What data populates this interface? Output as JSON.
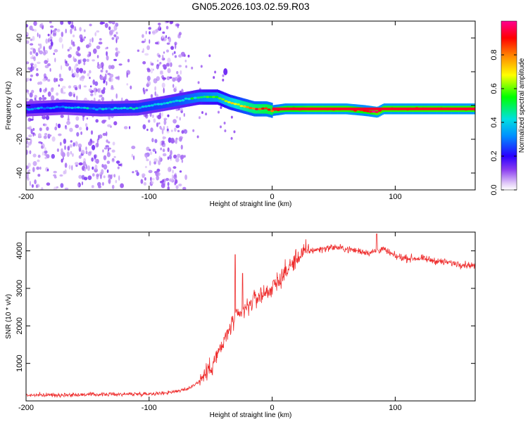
{
  "title": "GN05.2026.103.02.59.R03",
  "chart_data": [
    {
      "type": "heatmap",
      "name": "spectrogram",
      "xlabel": "Height of straight line (km)",
      "ylabel": "Frequency (Hz)",
      "xlim": [
        -200,
        165
      ],
      "ylim": [
        -50,
        50
      ],
      "xticks": [
        -200,
        -100,
        0,
        100
      ],
      "yticks": [
        -40,
        -20,
        0,
        20,
        40
      ],
      "colorbar": {
        "label": "Normalized spectral amplitude",
        "range": [
          0,
          1
        ],
        "ticks": [
          0.0,
          0.2,
          0.4,
          0.6,
          0.8
        ],
        "tick_labels": [
          "0.0",
          "0.2",
          "0.4",
          "0.6",
          "0.8"
        ]
      },
      "ridge": {
        "x": [
          -200,
          -170,
          -140,
          -110,
          -90,
          -75,
          -60,
          -45,
          -35,
          -25,
          -15,
          -5,
          0,
          10,
          30,
          60,
          75,
          85,
          90,
          120,
          165
        ],
        "y": [
          -2,
          -1,
          -2,
          -1.5,
          1,
          3,
          5,
          5,
          2,
          0,
          -2,
          -2,
          -3,
          -2,
          -2,
          -2,
          -3,
          -4,
          -2,
          -2,
          -2
        ],
        "amplitude": [
          0.3,
          0.35,
          0.38,
          0.4,
          0.42,
          0.45,
          0.5,
          0.55,
          0.65,
          0.75,
          0.8,
          0.85,
          0.85,
          0.9,
          0.95,
          0.95,
          0.9,
          0.97,
          0.95,
          0.95,
          0.95
        ]
      }
    },
    {
      "type": "line",
      "name": "snr",
      "xlabel": "Height of straight line (km)",
      "ylabel": "SNR (10 * v/v)",
      "xlim": [
        -200,
        165
      ],
      "ylim": [
        0,
        4500
      ],
      "xticks": [
        -200,
        -100,
        0,
        100
      ],
      "yticks": [
        1000,
        2000,
        3000,
        4000
      ],
      "color": "#ee2c2c",
      "envelope": {
        "x": [
          -200,
          -120,
          -90,
          -70,
          -60,
          -50,
          -45,
          -40,
          -35,
          -30,
          -25,
          -20,
          -15,
          -10,
          -5,
          0,
          5,
          10,
          15,
          20,
          25,
          30,
          40,
          50,
          60,
          70,
          80,
          90,
          100,
          110,
          120,
          140,
          165
        ],
        "y": [
          150,
          180,
          200,
          300,
          500,
          900,
          1200,
          1500,
          1900,
          2200,
          2300,
          2500,
          2700,
          2800,
          2900,
          3000,
          3200,
          3400,
          3600,
          3800,
          3950,
          4000,
          4050,
          4100,
          4050,
          4000,
          3950,
          4050,
          3850,
          3800,
          3800,
          3700,
          3600
        ]
      },
      "peaks": [
        {
          "x": -30,
          "y": 3900
        },
        {
          "x": -24,
          "y": 3400
        },
        {
          "x": 85,
          "y": 4450
        }
      ]
    }
  ]
}
